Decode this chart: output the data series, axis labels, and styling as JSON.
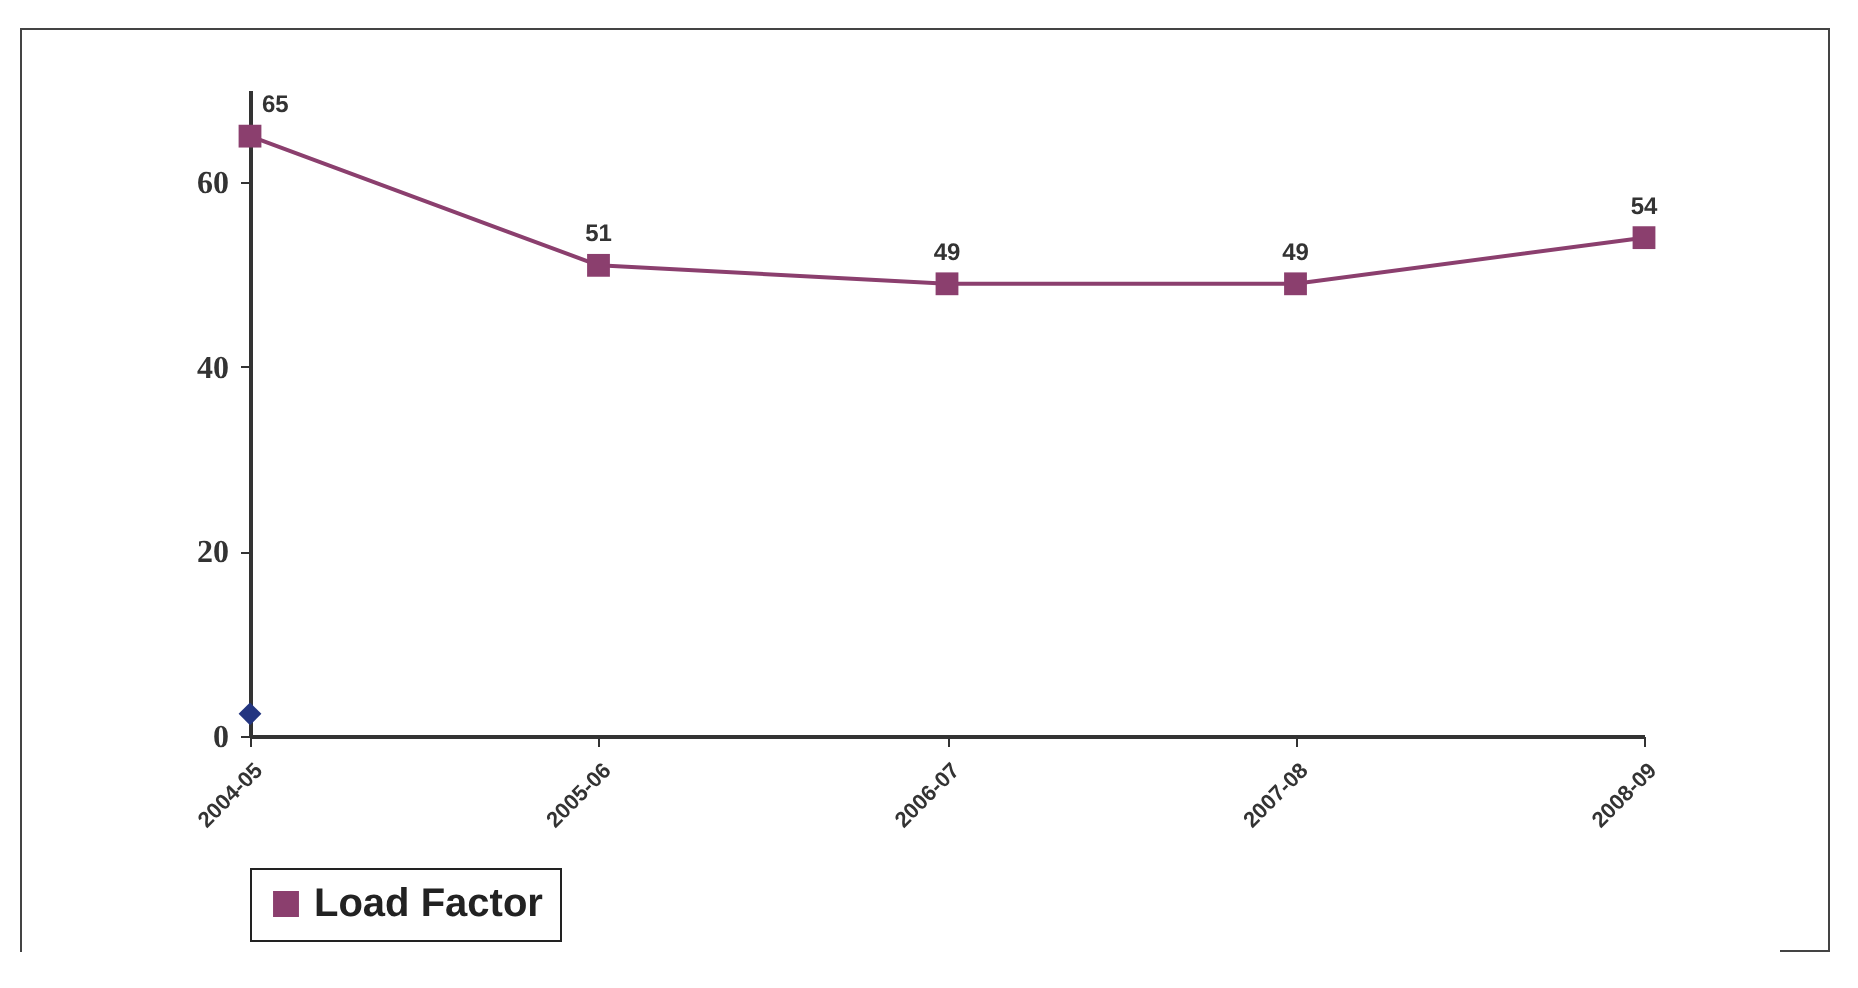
{
  "chart_data": {
    "type": "line",
    "categories": [
      "2004-05",
      "2005-06",
      "2006-07",
      "2007-08",
      "2008-09"
    ],
    "series": [
      {
        "name": "Load Factor",
        "color": "#8b3f6e",
        "values": [
          65,
          51,
          49,
          49,
          54
        ],
        "value_labels": [
          "65",
          "51",
          "49",
          "49",
          "54"
        ]
      },
      {
        "type": "scatter",
        "marker": "diamond",
        "color": "#233580",
        "values": [
          2.4,
          null,
          null,
          null,
          null
        ]
      }
    ],
    "ylim": [
      0,
      70
    ],
    "yticks": [
      0,
      20,
      40,
      60
    ],
    "grid": false,
    "legend": "bottom",
    "marker": "square"
  }
}
